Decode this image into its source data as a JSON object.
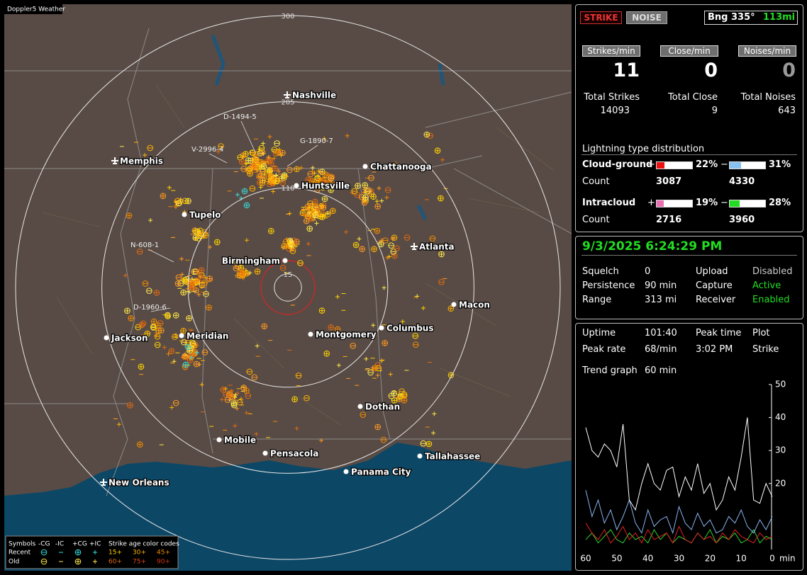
{
  "window": {
    "title": "Doppler5 Weather"
  },
  "map": {
    "range_rings": [
      300,
      205,
      110,
      15
    ],
    "cities": [
      "Nashville",
      "Memphis",
      "Chattanooga",
      "Huntsville",
      "Tupelo",
      "Atlanta",
      "Birmingham",
      "Macon",
      "Jackson",
      "Meridian",
      "Montgomery",
      "Columbus",
      "Dothan",
      "Mobile",
      "Pensacola",
      "Tallahassee",
      "Panama City",
      "New Orleans"
    ],
    "storm_labels": [
      "D-1494-5",
      "G-1890-7",
      "V-2996-4",
      "N-608-1",
      "D-1960-6"
    ],
    "legend": {
      "symbols_label": "Symbols",
      "symbol_types": [
        "-CG",
        "-IC",
        "+CG",
        "+IC"
      ],
      "color_codes_label": "Strike age color codes",
      "rows": [
        "Recent",
        "Old"
      ],
      "recent_ages": [
        "15+",
        "30+",
        "45+"
      ],
      "old_ages": [
        "60+",
        "75+",
        "90+"
      ]
    }
  },
  "status": {
    "strike_button": "STRIKE",
    "noise_button": "NOISE",
    "bearing": "Bng 335°",
    "distance": "113mi",
    "rates": [
      {
        "label": "Strikes/min",
        "value": 11
      },
      {
        "label": "Close/min",
        "value": 0
      },
      {
        "label": "Noises/min",
        "value": 0
      }
    ],
    "totals": [
      {
        "label": "Total Strikes",
        "value": 14093
      },
      {
        "label": "Total Close",
        "value": 9
      },
      {
        "label": "Total Noises",
        "value": 643
      }
    ]
  },
  "distribution": {
    "title": "Lightning type distribution",
    "count_label": "Count",
    "positive_sign": "+",
    "negative_sign": "−",
    "rows": [
      {
        "name": "Cloud-ground",
        "positive": {
          "value": 22,
          "label": "22%"
        },
        "negative": {
          "value": 31,
          "label": "31%"
        },
        "positive_count": 3087,
        "negative_count": 4330
      },
      {
        "name": "Intracloud",
        "positive": {
          "value": 19,
          "label": "19%"
        },
        "negative": {
          "value": 28,
          "label": "28%"
        },
        "positive_count": 2716,
        "negative_count": 3960
      }
    ]
  },
  "settings": {
    "datetime": "9/3/2025 6:24:29 PM",
    "items": [
      {
        "label": "Squelch",
        "value": "0"
      },
      {
        "label": "Upload",
        "value": "Disabled"
      },
      {
        "label": "Persistence",
        "value": "90 min"
      },
      {
        "label": "Capture",
        "value": "Active"
      },
      {
        "label": "Range",
        "value": "313 mi"
      },
      {
        "label": "Receiver",
        "value": "Enabled"
      }
    ]
  },
  "stats": {
    "items": [
      {
        "label": "Uptime",
        "value": "101:40"
      },
      {
        "label": "Peak time",
        "value": "3:02 PM"
      },
      {
        "label": "Plot",
        "value": "Strike"
      },
      {
        "label": "Peak rate",
        "value": "68/min"
      }
    ],
    "trend_label": "Trend graph",
    "trend_window": "60 min"
  },
  "trend_chart": {
    "type": "line",
    "x_unit": "min",
    "x": [
      60,
      58,
      56,
      54,
      52,
      50,
      48,
      46,
      44,
      42,
      40,
      38,
      36,
      34,
      32,
      30,
      28,
      26,
      24,
      22,
      20,
      18,
      16,
      14,
      12,
      10,
      8,
      6,
      4,
      2,
      0
    ],
    "xlim": [
      60,
      0
    ],
    "xticks": [
      60,
      50,
      40,
      30,
      20,
      10,
      0
    ],
    "ylim": [
      0,
      50
    ],
    "yticks": [
      20,
      30,
      40,
      50
    ],
    "series": [
      {
        "color": "#ffffff",
        "values": [
          37,
          30,
          28,
          32,
          30,
          25,
          38,
          15,
          12,
          20,
          26,
          20,
          18,
          24,
          25,
          16,
          22,
          18,
          26,
          17,
          20,
          12,
          15,
          22,
          18,
          28,
          40,
          15,
          14,
          20,
          16
        ]
      },
      {
        "color": "#8ab4f0",
        "values": [
          18,
          10,
          15,
          8,
          12,
          6,
          10,
          15,
          8,
          5,
          12,
          7,
          9,
          10,
          5,
          13,
          8,
          6,
          11,
          7,
          9,
          5,
          6,
          10,
          8,
          12,
          7,
          5,
          9,
          6,
          10
        ]
      },
      {
        "color": "#e02020",
        "values": [
          8,
          5,
          3,
          6,
          2,
          4,
          7,
          3,
          5,
          2,
          6,
          3,
          4,
          5,
          2,
          7,
          3,
          2,
          5,
          3,
          4,
          2,
          5,
          3,
          6,
          4,
          3,
          2,
          5,
          3,
          4
        ]
      },
      {
        "color": "#30d030",
        "values": [
          3,
          5,
          2,
          4,
          6,
          3,
          2,
          5,
          3,
          4,
          2,
          6,
          3,
          5,
          2,
          4,
          3,
          2,
          5,
          3,
          6,
          2,
          4,
          3,
          5,
          2,
          3,
          6,
          2,
          4,
          3
        ]
      }
    ]
  }
}
